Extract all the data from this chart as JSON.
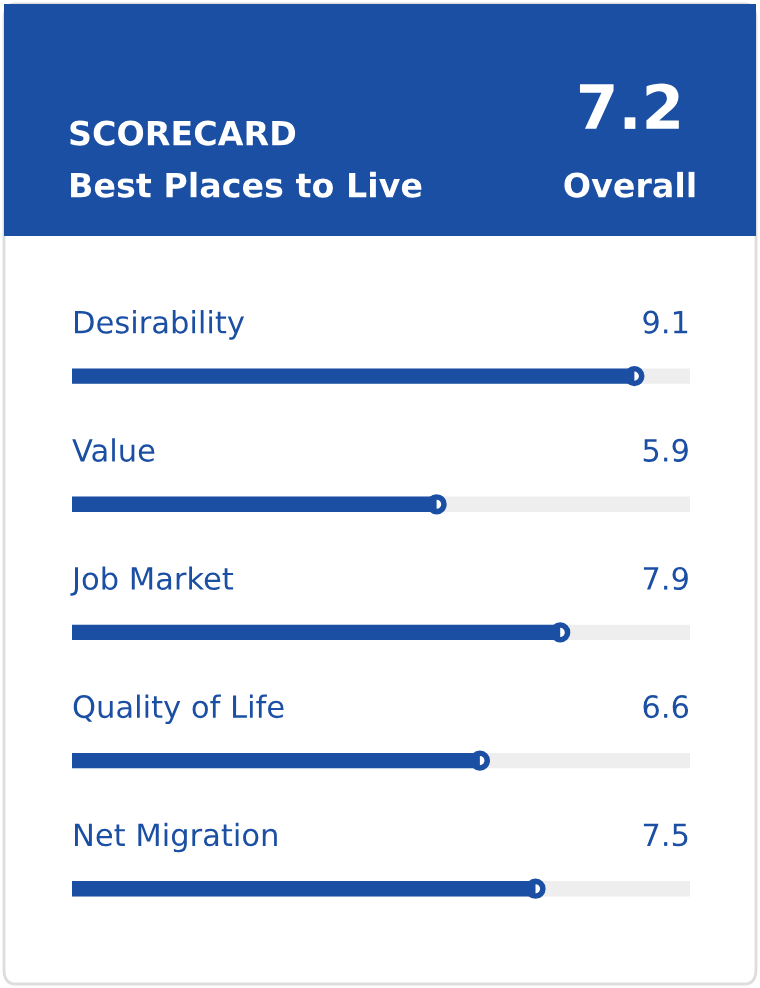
{
  "chart_data": {
    "type": "bar",
    "orientation": "horizontal",
    "title": "SCORECARD",
    "subtitle": "Best Places to Live",
    "annotations": [
      "7.2",
      "Overall"
    ],
    "categories": [
      "Desirability",
      "Value",
      "Job Market",
      "Quality of Life",
      "Net Migration"
    ],
    "values": [
      9.1,
      5.9,
      7.9,
      6.6,
      7.5
    ],
    "color": "#1b4fa3",
    "xlim": [
      0,
      10
    ],
    "data_labels": true,
    "marker": "circle"
  }
}
